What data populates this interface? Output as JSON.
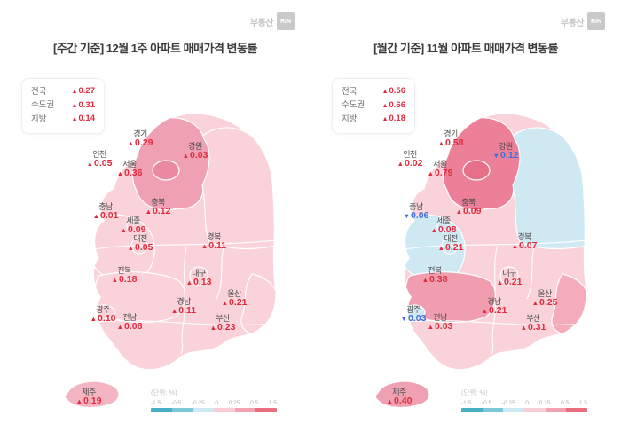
{
  "brand": {
    "prefix": "부동산",
    "box": "RIN"
  },
  "colors": {
    "up": "#e02b3e",
    "down": "#3e6fd9"
  },
  "scale": {
    "unit_label": "(단위: %)",
    "ticks": [
      "-1.5",
      "-0.5",
      "-0.25",
      "0",
      "0.25",
      "0.5",
      "1.5"
    ],
    "segment_colors": [
      "#49afc3",
      "#7cc8d8",
      "#cfe9f2",
      "#f8cdd5",
      "#f3a2b0",
      "#eb6e7f"
    ]
  },
  "panels": [
    {
      "title": "[주간 기준] 12월 1주 아파트 매매가격 변동률",
      "summary": [
        {
          "label": "전국",
          "value": "0.27",
          "dir": "up"
        },
        {
          "label": "수도권",
          "value": "0.31",
          "dir": "up"
        },
        {
          "label": "지방",
          "value": "0.14",
          "dir": "up"
        }
      ],
      "regions": [
        {
          "key": "gyeonggi",
          "name": "경기",
          "value": "0.29",
          "dir": "up"
        },
        {
          "key": "gangwon",
          "name": "강원",
          "value": "0.03",
          "dir": "up"
        },
        {
          "key": "incheon",
          "name": "인천",
          "value": "0.05",
          "dir": "up"
        },
        {
          "key": "seoul",
          "name": "서울",
          "value": "0.36",
          "dir": "up"
        },
        {
          "key": "chungnam",
          "name": "충남",
          "value": "0.01",
          "dir": "up"
        },
        {
          "key": "chungbuk",
          "name": "충북",
          "value": "0.12",
          "dir": "up"
        },
        {
          "key": "sejong",
          "name": "세종",
          "value": "0.09",
          "dir": "up"
        },
        {
          "key": "daejeon",
          "name": "대전",
          "value": "0.05",
          "dir": "up"
        },
        {
          "key": "gyeongbuk",
          "name": "경북",
          "value": "0.11",
          "dir": "up"
        },
        {
          "key": "jeonbuk",
          "name": "전북",
          "value": "0.18",
          "dir": "up"
        },
        {
          "key": "daegu",
          "name": "대구",
          "value": "0.13",
          "dir": "up"
        },
        {
          "key": "ulsan",
          "name": "울산",
          "value": "0.21",
          "dir": "up"
        },
        {
          "key": "gyeongnam",
          "name": "경남",
          "value": "0.11",
          "dir": "up"
        },
        {
          "key": "gwangju",
          "name": "광주",
          "value": "0.10",
          "dir": "up"
        },
        {
          "key": "jeonnam",
          "name": "전남",
          "value": "0.08",
          "dir": "up"
        },
        {
          "key": "busan",
          "name": "부산",
          "value": "0.23",
          "dir": "up"
        },
        {
          "key": "jeju",
          "name": "제주",
          "value": "0.19",
          "dir": "up"
        }
      ],
      "map_colors": {
        "base": "#f9d2da",
        "gyeonggi": "#f0a0b3",
        "seoul": "#ea8aa1",
        "gangwon": "#f9d2da",
        "chungnam": "#f9d2da",
        "jeonbuk": "#f9d2da",
        "southeast": "#f9d2da",
        "gwangju": "#f9d2da",
        "jeju": "#f4b4c2"
      }
    },
    {
      "title": "[월간 기준] 11월 아파트 매매가격 변동률",
      "summary": [
        {
          "label": "전국",
          "value": "0.56",
          "dir": "up"
        },
        {
          "label": "수도권",
          "value": "0.66",
          "dir": "up"
        },
        {
          "label": "지방",
          "value": "0.18",
          "dir": "up"
        }
      ],
      "regions": [
        {
          "key": "gyeonggi",
          "name": "경기",
          "value": "0.58",
          "dir": "up"
        },
        {
          "key": "gangwon",
          "name": "강원",
          "value": "0.12",
          "dir": "down"
        },
        {
          "key": "incheon",
          "name": "인천",
          "value": "0.02",
          "dir": "up"
        },
        {
          "key": "seoul",
          "name": "서울",
          "value": "0.79",
          "dir": "up"
        },
        {
          "key": "chungnam",
          "name": "충남",
          "value": "0.06",
          "dir": "down"
        },
        {
          "key": "chungbuk",
          "name": "충북",
          "value": "0.09",
          "dir": "up"
        },
        {
          "key": "sejong",
          "name": "세종",
          "value": "0.08",
          "dir": "up"
        },
        {
          "key": "daejeon",
          "name": "대전",
          "value": "0.21",
          "dir": "up"
        },
        {
          "key": "gyeongbuk",
          "name": "경북",
          "value": "0.07",
          "dir": "up"
        },
        {
          "key": "jeonbuk",
          "name": "전북",
          "value": "0.38",
          "dir": "up"
        },
        {
          "key": "daegu",
          "name": "대구",
          "value": "0.21",
          "dir": "up"
        },
        {
          "key": "ulsan",
          "name": "울산",
          "value": "0.25",
          "dir": "up"
        },
        {
          "key": "gyeongnam",
          "name": "경남",
          "value": "0.21",
          "dir": "up"
        },
        {
          "key": "gwangju",
          "name": "광주",
          "value": "0.03",
          "dir": "down"
        },
        {
          "key": "jeonnam",
          "name": "전남",
          "value": "0.03",
          "dir": "up"
        },
        {
          "key": "busan",
          "name": "부산",
          "value": "0.31",
          "dir": "up"
        },
        {
          "key": "jeju",
          "name": "제주",
          "value": "0.40",
          "dir": "up"
        }
      ],
      "map_colors": {
        "base": "#f9d2da",
        "gyeonggi": "#ec8098",
        "seoul": "#e77089",
        "gangwon": "#cfe9f3",
        "chungnam": "#cfe9f3",
        "jeonbuk": "#f09db0",
        "southeast": "#f4abba",
        "gwangju": "#cfe9f3",
        "jeju": "#efa0b2"
      }
    }
  ],
  "chart_data": [
    {
      "type": "heatmap",
      "subtype": "choropleth-map-korea",
      "title": "[주간 기준] 12월 1주 아파트 매매가격 변동률",
      "unit": "%",
      "categories": [
        "전국",
        "수도권",
        "지방",
        "경기",
        "강원",
        "인천",
        "서울",
        "충남",
        "충북",
        "세종",
        "대전",
        "경북",
        "전북",
        "대구",
        "울산",
        "경남",
        "광주",
        "전남",
        "부산",
        "제주"
      ],
      "values": [
        0.27,
        0.31,
        0.14,
        0.29,
        0.03,
        0.05,
        0.36,
        0.01,
        0.12,
        0.09,
        0.05,
        0.11,
        0.18,
        0.13,
        0.21,
        0.11,
        0.1,
        0.08,
        0.23,
        0.19
      ],
      "color_scale_ticks": [
        -1.5,
        -0.5,
        -0.25,
        0,
        0.25,
        0.5,
        1.5
      ],
      "legend_position": "bottom"
    },
    {
      "type": "heatmap",
      "subtype": "choropleth-map-korea",
      "title": "[월간 기준] 11월 아파트 매매가격 변동률",
      "unit": "%",
      "categories": [
        "전국",
        "수도권",
        "지방",
        "경기",
        "강원",
        "인천",
        "서울",
        "충남",
        "충북",
        "세종",
        "대전",
        "경북",
        "전북",
        "대구",
        "울산",
        "경남",
        "광주",
        "전남",
        "부산",
        "제주"
      ],
      "values": [
        0.56,
        0.66,
        0.18,
        0.58,
        -0.12,
        0.02,
        0.79,
        -0.06,
        0.09,
        0.08,
        0.21,
        0.07,
        0.38,
        0.21,
        0.25,
        0.21,
        -0.03,
        0.03,
        0.31,
        0.4
      ],
      "color_scale_ticks": [
        -1.5,
        -0.5,
        -0.25,
        0,
        0.25,
        0.5,
        1.5
      ],
      "legend_position": "bottom"
    }
  ]
}
